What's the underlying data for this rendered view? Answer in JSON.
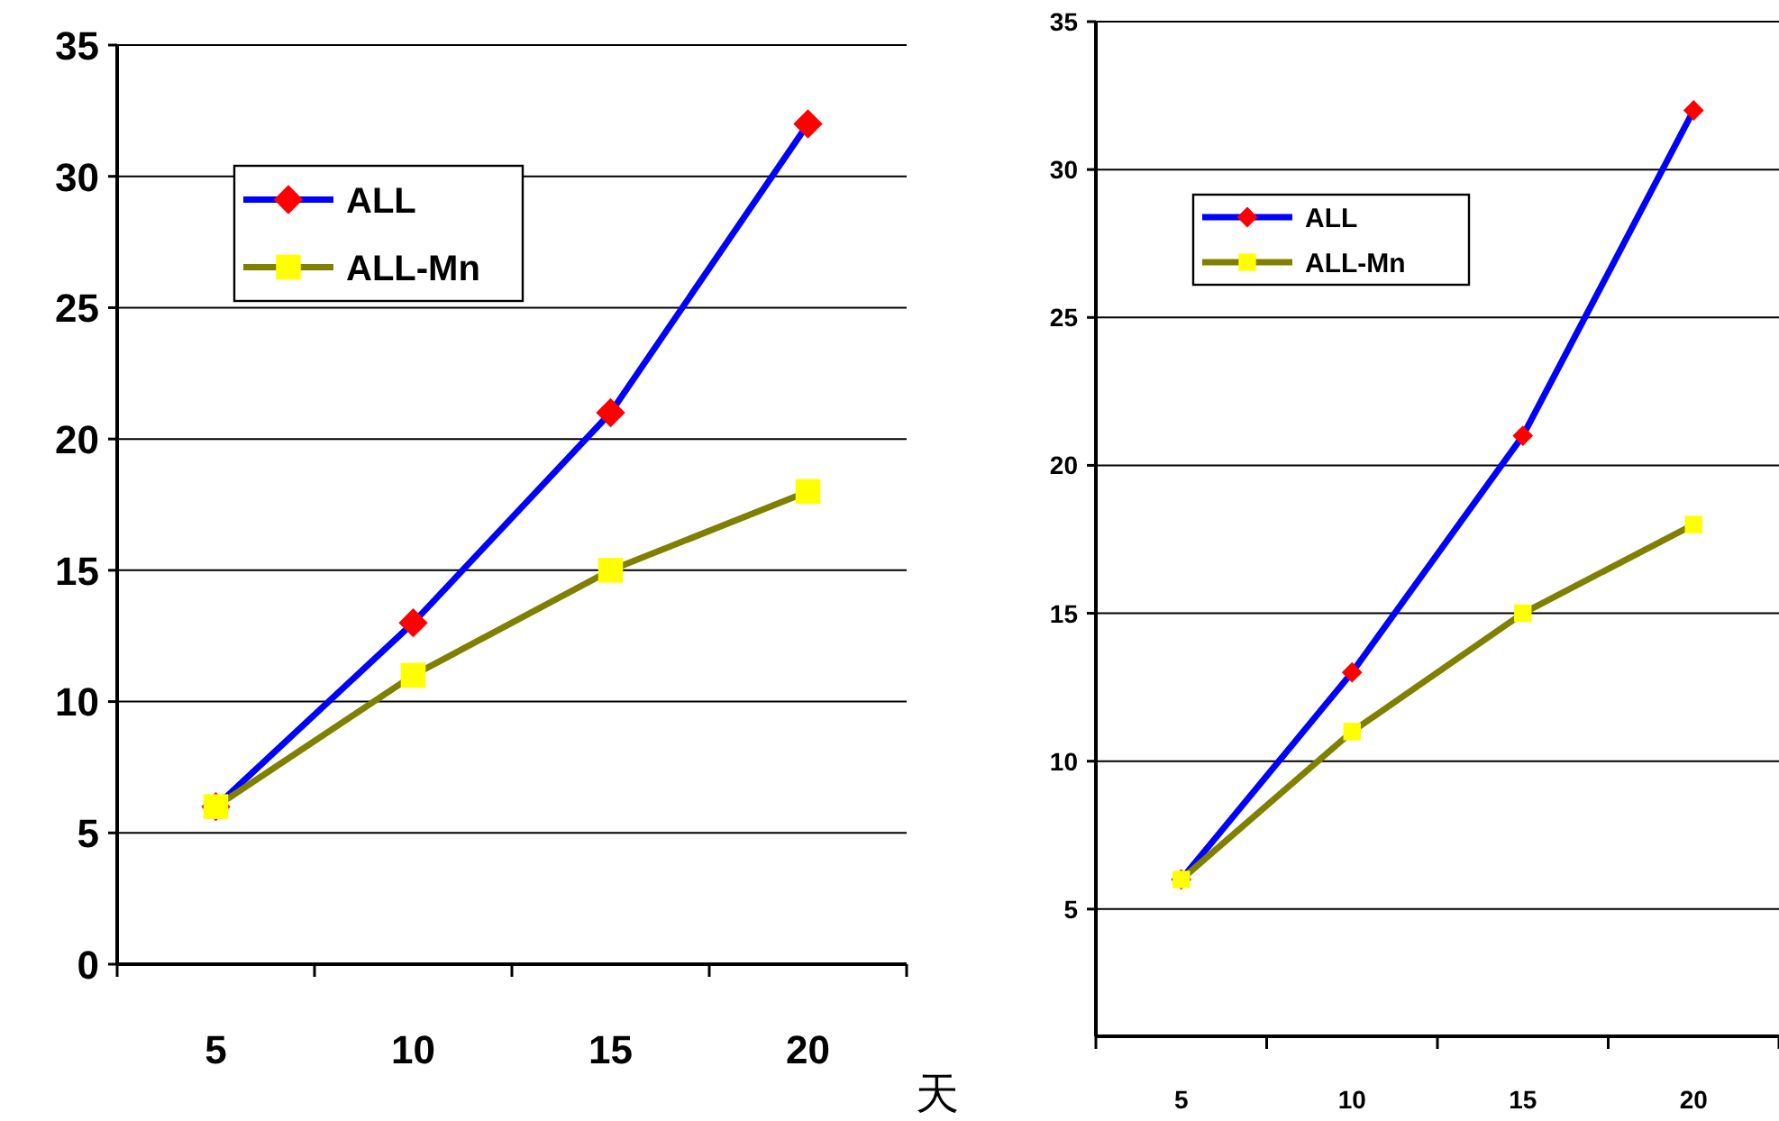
{
  "chart_data": [
    {
      "type": "line",
      "categories": [
        "5",
        "10",
        "15",
        "20"
      ],
      "xlabel": "天",
      "ylim": [
        0,
        35
      ],
      "yticks": [
        0,
        5,
        10,
        15,
        20,
        25,
        30,
        35
      ],
      "grid": "y",
      "legend": "top left",
      "series": [
        {
          "name": "ALL",
          "color": "#0000ff",
          "marker": "diamond",
          "values": [
            6,
            13,
            21,
            32
          ]
        },
        {
          "name": "ALL-Mn",
          "color": "#808000",
          "marker": "square",
          "values": [
            6,
            11,
            15,
            18
          ]
        }
      ]
    },
    {
      "type": "line",
      "categories": [
        "5",
        "10",
        "15",
        "20"
      ],
      "ylim": [
        0.7,
        35
      ],
      "yticks": [
        5,
        10,
        15,
        20,
        25,
        30,
        35
      ],
      "grid": "y",
      "legend": "top left",
      "series": [
        {
          "name": "ALL",
          "color": "#0000ff",
          "marker": "diamond",
          "values": [
            6,
            13,
            21,
            32
          ]
        },
        {
          "name": "ALL-Mn",
          "color": "#808000",
          "marker": "square",
          "values": [
            6,
            11,
            15,
            18
          ]
        }
      ]
    }
  ]
}
